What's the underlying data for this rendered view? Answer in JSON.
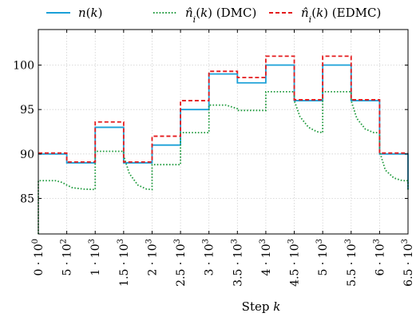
{
  "chart_data": {
    "type": "line",
    "xlabel": "Step k",
    "xlim": [
      0,
      6500
    ],
    "ylim": [
      81,
      104
    ],
    "grid": true,
    "legend_position": "top",
    "x_ticks": [
      0,
      500,
      1000,
      1500,
      2000,
      2500,
      3000,
      3500,
      4000,
      4500,
      5000,
      5500,
      6000,
      6500
    ],
    "x_tick_labels": [
      "0 · 10^0",
      "5 · 10^2",
      "1 · 10^3",
      "1.5 · 10^3",
      "2 · 10^3",
      "2.5 · 10^3",
      "3 · 10^3",
      "3.5 · 10^3",
      "4 · 10^3",
      "4.5 · 10^3",
      "5 · 10^3",
      "5.5 · 10^3",
      "6 · 10^3",
      "6.5 · 10^3"
    ],
    "y_ticks": [
      85,
      90,
      95,
      100
    ],
    "y_tick_labels": [
      "85",
      "90",
      "95",
      "100"
    ],
    "series": [
      {
        "name": "n(k)",
        "color": "#1aa0d8",
        "style": "solid",
        "x": [
          0,
          500,
          500,
          1000,
          1000,
          1500,
          1500,
          2000,
          2000,
          2500,
          2500,
          3000,
          3000,
          3500,
          3500,
          4000,
          4000,
          4500,
          4500,
          5000,
          5000,
          5500,
          5500,
          6000,
          6000,
          6500,
          6500
        ],
        "y": [
          90,
          90,
          89,
          89,
          93,
          93,
          89,
          89,
          91,
          91,
          95,
          95,
          99,
          99,
          98,
          98,
          100,
          100,
          96,
          96,
          100,
          100,
          96,
          96,
          90,
          90,
          86
        ]
      },
      {
        "name": "n̂_i(k) (DMC)",
        "color": "#1e9a3c",
        "style": "dotted",
        "x": [
          0,
          0,
          50,
          300,
          420,
          500,
          600,
          800,
          1000,
          1000,
          1500,
          1500,
          1600,
          1750,
          1900,
          2000,
          2000,
          2500,
          2500,
          3000,
          3000,
          3300,
          3500,
          3500,
          4000,
          4000,
          4500,
          4500,
          4600,
          4750,
          4900,
          5000,
          5000,
          5500,
          5500,
          5600,
          5750,
          5900,
          6000,
          6000,
          6100,
          6250,
          6400,
          6500,
          6500
        ],
        "y": [
          81,
          87,
          87,
          87,
          86.8,
          86.5,
          86.2,
          86.05,
          86,
          90.3,
          90.3,
          89.8,
          87.8,
          86.5,
          86.05,
          86,
          88.8,
          88.8,
          92.4,
          92.4,
          95.5,
          95.5,
          95.1,
          94.9,
          94.9,
          97,
          97,
          96,
          94.2,
          93,
          92.5,
          92.4,
          97,
          97,
          96,
          94,
          92.8,
          92.4,
          92.4,
          90.3,
          88.2,
          87.3,
          87,
          87,
          86
        ]
      },
      {
        "name": "n̂_i(k) (EDMC)",
        "color": "#e41a1c",
        "style": "dashed",
        "x": [
          0,
          500,
          500,
          1000,
          1000,
          1500,
          1500,
          2000,
          2000,
          2500,
          2500,
          3000,
          3000,
          3500,
          3500,
          4000,
          4000,
          4500,
          4500,
          5000,
          5000,
          5500,
          5500,
          6000,
          6000,
          6500
        ],
        "y": [
          90.1,
          90.1,
          89.1,
          89.1,
          93.6,
          93.6,
          89.1,
          89.1,
          92,
          92,
          96,
          96,
          99.3,
          99.3,
          98.6,
          98.6,
          101,
          101,
          96.1,
          96.1,
          101,
          101,
          96.1,
          96.1,
          90.1,
          90.1
        ]
      }
    ]
  }
}
